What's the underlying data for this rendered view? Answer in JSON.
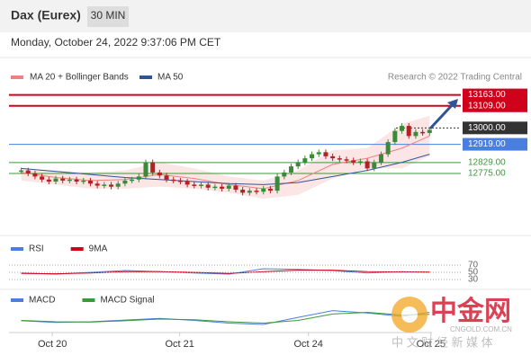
{
  "chart_data": {
    "type": "candlestick",
    "title": "Dax (Eurex)",
    "timeframe": "30 MIN",
    "timestamp": "Monday, October 24, 2022 9:37:06 PM CET",
    "legend": {
      "ma20": "MA 20 + Bollinger Bands",
      "ma50": "MA 50",
      "credit": "Research © 2022 Trading Central"
    },
    "ylim": [
      12500,
      13210
    ],
    "xlim": [
      -1.5,
      60
    ],
    "xticks": [
      {
        "value": 4.5,
        "label": "Oct 20"
      },
      {
        "value": 22.9,
        "label": "Oct 21"
      },
      {
        "value": 41.5,
        "label": "Oct 24"
      },
      {
        "value": 59.2,
        "label": "Oct 25"
      }
    ],
    "closes": [
      12790,
      12775,
      12760,
      12745,
      12735,
      12750,
      12740,
      12745,
      12735,
      12740,
      12725,
      12715,
      12720,
      12710,
      12725,
      12740,
      12745,
      12760,
      12830,
      12780,
      12765,
      12745,
      12740,
      12735,
      12720,
      12715,
      12720,
      12705,
      12710,
      12700,
      12715,
      12695,
      12680,
      12690,
      12685,
      12700,
      12690,
      12760,
      12780,
      12810,
      12830,
      12850,
      12870,
      12880,
      12860,
      12850,
      12845,
      12840,
      12830,
      12835,
      12800,
      12830,
      12870,
      12930,
      12985,
      13010,
      12960,
      12980,
      12975,
      12990
    ],
    "levels": [
      {
        "value": 13163,
        "label": "13163.00",
        "color": "#d0021b"
      },
      {
        "value": 13109,
        "label": "13109.00",
        "color": "#d0021b"
      },
      {
        "value": 13000,
        "label": "13000.00",
        "color": "#333333"
      },
      {
        "value": 12919,
        "label": "12919.00",
        "color": "#4a7fe0"
      },
      {
        "value": 12829,
        "label": "12829.00",
        "color": "#3a9a3a"
      },
      {
        "value": 12775,
        "label": "12775.00",
        "color": "#3a9a3a"
      }
    ],
    "overlays": {
      "x": [
        0,
        5,
        10,
        15,
        20,
        25,
        30,
        35,
        40,
        45,
        50,
        55,
        59
      ],
      "ma20": {
        "color": "#f08080",
        "values": [
          12780,
          12755,
          12740,
          12745,
          12770,
          12750,
          12720,
          12700,
          12740,
          12820,
          12850,
          12900,
          12960
        ]
      },
      "ma50": {
        "color": "#2f5597",
        "values": [
          12800,
          12785,
          12770,
          12755,
          12745,
          12735,
          12725,
          12720,
          12730,
          12760,
          12790,
          12830,
          12870
        ]
      },
      "upper": [
        12800,
        12790,
        12780,
        12790,
        12830,
        12800,
        12760,
        12740,
        12790,
        12890,
        12900,
        13020,
        13060
      ],
      "lower": [
        12740,
        12720,
        12700,
        12700,
        12710,
        12700,
        12680,
        12650,
        12670,
        12750,
        12800,
        12800,
        12860
      ]
    },
    "rsi": {
      "ylim": [
        0,
        100
      ],
      "yticks": [
        70,
        50,
        30
      ],
      "series": [
        {
          "name": "RSI",
          "color": "#4a7fe0",
          "values": [
            48,
            45,
            50,
            55,
            52,
            48,
            45,
            60,
            58,
            55,
            48,
            52,
            50
          ]
        },
        {
          "name": "9MA",
          "color": "#d0021b",
          "values": [
            47,
            46,
            48,
            52,
            52,
            50,
            47,
            52,
            56,
            56,
            52,
            51,
            51
          ]
        }
      ]
    },
    "macd": {
      "ylim": [
        -40,
        40
      ],
      "series": [
        {
          "name": "MACD",
          "color": "#4a7fe0",
          "values": [
            -5,
            -10,
            -8,
            -3,
            2,
            -4,
            -12,
            -16,
            5,
            25,
            18,
            8,
            20
          ]
        },
        {
          "name": "MACD Signal",
          "color": "#3a9a3a",
          "values": [
            -4,
            -8,
            -9,
            -5,
            0,
            -2,
            -8,
            -12,
            -4,
            15,
            20,
            12,
            14
          ]
        }
      ]
    },
    "watermark": {
      "brand": "中金网",
      "site": "CNGOLD.COM.CN",
      "slogan": "中 文 财 经 新 媒 体"
    }
  }
}
